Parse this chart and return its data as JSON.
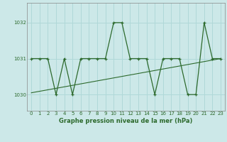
{
  "x": [
    0,
    1,
    2,
    3,
    4,
    5,
    6,
    7,
    8,
    9,
    10,
    11,
    12,
    13,
    14,
    15,
    16,
    17,
    18,
    19,
    20,
    21,
    22,
    23
  ],
  "y": [
    1031,
    1031,
    1031,
    1030,
    1031,
    1030,
    1031,
    1031,
    1031,
    1031,
    1032,
    1032,
    1031,
    1031,
    1031,
    1030,
    1031,
    1031,
    1031,
    1030,
    1030,
    1032,
    1031,
    1031
  ],
  "trend_x": [
    0,
    23
  ],
  "trend_y": [
    1030.05,
    1031.0
  ],
  "line_color": "#2d6a2d",
  "bg_color": "#cce8e8",
  "grid_color": "#b0d8d8",
  "ylabel_ticks": [
    1030,
    1031,
    1032
  ],
  "xlabel": "Graphe pression niveau de la mer (hPa)",
  "xlim": [
    -0.5,
    23.5
  ],
  "ylim": [
    1029.55,
    1032.55
  ]
}
